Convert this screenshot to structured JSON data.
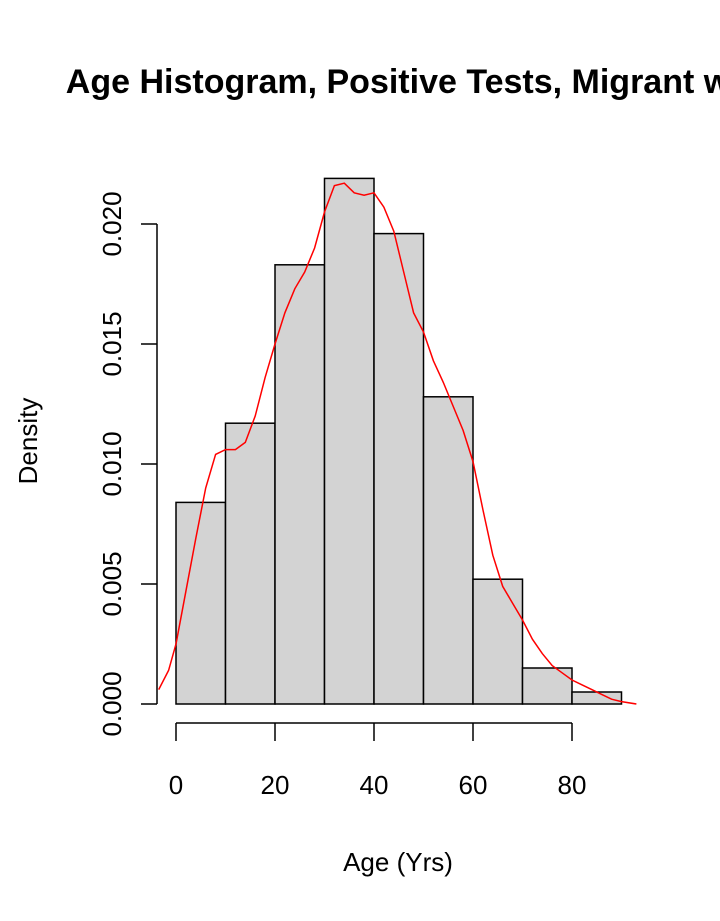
{
  "chart_data": {
    "type": "bar",
    "title": "Age Histogram, Positive Tests,  Migrant w",
    "xlabel": "Age (Yrs)",
    "ylabel": "Density",
    "bin_edges": [
      0,
      10,
      20,
      30,
      40,
      50,
      60,
      70,
      80,
      90
    ],
    "values": [
      0.0084,
      0.0117,
      0.0183,
      0.0219,
      0.0196,
      0.0128,
      0.0052,
      0.0015,
      0.0005
    ],
    "xlim": [
      -4,
      95
    ],
    "ylim": [
      0,
      0.022
    ],
    "x_ticks": [
      0,
      20,
      40,
      60,
      80
    ],
    "y_ticks": [
      0.0,
      0.005,
      0.01,
      0.015,
      0.02
    ],
    "y_tick_labels": [
      "0.000",
      "0.005",
      "0.010",
      "0.015",
      "0.020"
    ],
    "x_tick_labels": [
      "0",
      "20",
      "40",
      "60",
      "80"
    ],
    "bar_color": "#d3d3d3",
    "density_curve": {
      "color": "#ff0000",
      "x": [
        -3.5,
        -1.5,
        0,
        2,
        4,
        6,
        8,
        10,
        12,
        14,
        16,
        18,
        20,
        22,
        24,
        26,
        28,
        30,
        32,
        34,
        36,
        38,
        40,
        42,
        44,
        46,
        48,
        50,
        52,
        54,
        56,
        58,
        60,
        62,
        64,
        66,
        68,
        70,
        72,
        74,
        76,
        78,
        80,
        82,
        84,
        86,
        88,
        90,
        93
      ],
      "y": [
        0.0006,
        0.0014,
        0.0025,
        0.0047,
        0.0069,
        0.009,
        0.0104,
        0.0106,
        0.0106,
        0.0109,
        0.012,
        0.0136,
        0.015,
        0.0163,
        0.0173,
        0.018,
        0.019,
        0.0205,
        0.0216,
        0.0217,
        0.0213,
        0.0212,
        0.0213,
        0.0207,
        0.0197,
        0.018,
        0.0163,
        0.0155,
        0.0143,
        0.0134,
        0.0124,
        0.0114,
        0.0101,
        0.0081,
        0.0062,
        0.0049,
        0.0042,
        0.0035,
        0.0027,
        0.0021,
        0.0016,
        0.0013,
        0.001,
        0.0008,
        0.0006,
        0.0004,
        0.0002,
        0.0001,
        0.0
      ]
    }
  }
}
